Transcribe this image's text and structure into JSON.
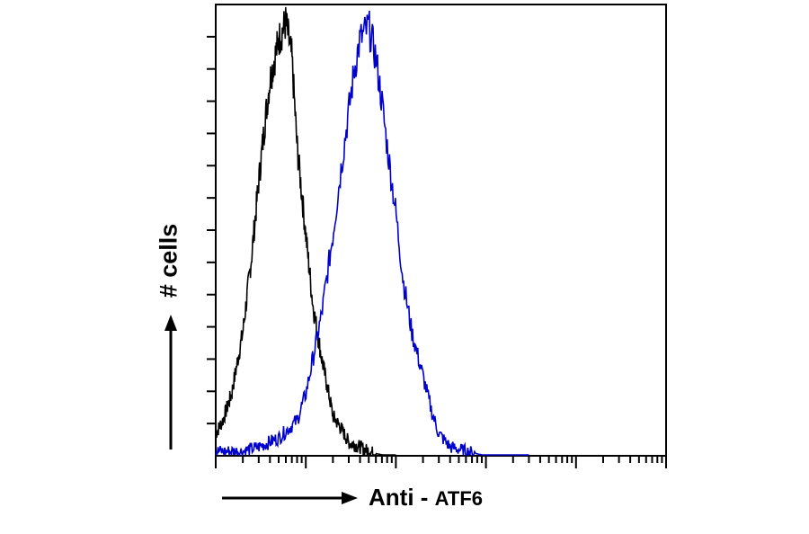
{
  "chart_data": {
    "type": "area",
    "title": "",
    "ylabel": "# cells",
    "xlabel": {
      "prefix": "Anti",
      "separator": " - ",
      "target": "ATF6"
    },
    "xscale": "log",
    "xlim": [
      1,
      100000
    ],
    "ylim": [
      0,
      100
    ],
    "grid": false,
    "legend": "none",
    "series": [
      {
        "color": "#000000",
        "x": [
          1,
          1.2,
          1.5,
          2,
          2.5,
          3,
          3.5,
          4,
          5,
          6,
          7,
          8,
          10,
          12,
          15,
          18,
          20,
          25,
          30,
          40,
          50,
          60,
          80,
          100
        ],
        "values": [
          5,
          8,
          14,
          28,
          45,
          62,
          75,
          85,
          94,
          98,
          90,
          70,
          50,
          34,
          22,
          14,
          9,
          6,
          3,
          2,
          1,
          0.5,
          0,
          0
        ]
      },
      {
        "color": "#0000cc",
        "x": [
          1,
          2,
          3,
          5,
          8,
          10,
          12,
          15,
          20,
          25,
          30,
          35,
          40,
          50,
          60,
          70,
          80,
          100,
          120,
          150,
          200,
          250,
          300,
          400,
          600,
          1000,
          3000
        ],
        "values": [
          1,
          1,
          2,
          4,
          8,
          14,
          22,
          32,
          50,
          66,
          78,
          88,
          94,
          97,
          90,
          80,
          70,
          55,
          40,
          28,
          18,
          10,
          5,
          2,
          1,
          0,
          0
        ]
      }
    ]
  },
  "colors": {
    "frame": "#000000",
    "control": "#000000",
    "stained": "#0000cc"
  }
}
